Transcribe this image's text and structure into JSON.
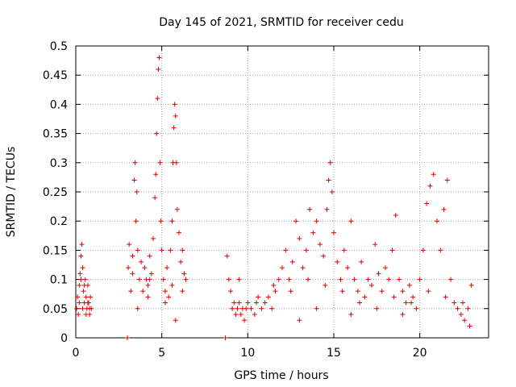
{
  "chart_data": {
    "type": "scatter",
    "title": "Day 145 of 2021, SRMTID for receiver cedu",
    "xlabel": "GPS time / hours",
    "ylabel": "SRMTID / TECUs",
    "xlim": [
      0,
      24
    ],
    "ylim": [
      0,
      0.5
    ],
    "xticks": [
      0,
      5,
      10,
      15,
      20
    ],
    "xtick_labels": [
      "0",
      "5",
      "10",
      "15",
      "20"
    ],
    "yticks": [
      0,
      0.05,
      0.1,
      0.15,
      0.2,
      0.25,
      0.3,
      0.35,
      0.4,
      0.45,
      0.5
    ],
    "ytick_labels": [
      "0",
      "0.05",
      "0.1",
      "0.15",
      "0.2",
      "0.25",
      "0.3",
      "0.35",
      "0.4",
      "0.45",
      "0.5"
    ],
    "grid": true,
    "marker": "+",
    "color": "#e00000",
    "series": [
      {
        "name": "SRMTID",
        "points": [
          [
            0.05,
            0.05
          ],
          [
            0.1,
            0.07
          ],
          [
            0.15,
            0.04
          ],
          [
            0.2,
            0.09
          ],
          [
            0.25,
            0.11
          ],
          [
            0.3,
            0.14
          ],
          [
            0.35,
            0.16
          ],
          [
            0.4,
            0.12
          ],
          [
            0.45,
            0.08
          ],
          [
            0.5,
            0.06
          ],
          [
            0.55,
            0.1
          ],
          [
            0.6,
            0.07
          ],
          [
            0.65,
            0.05
          ],
          [
            0.7,
            0.09
          ],
          [
            0.75,
            0.06
          ],
          [
            0.8,
            0.04
          ],
          [
            0.85,
            0.07
          ],
          [
            0.9,
            0.05
          ],
          [
            0.3,
            0.1
          ],
          [
            0.5,
            0.09
          ],
          [
            0.7,
            0.06
          ],
          [
            0.2,
            0.06
          ],
          [
            0.4,
            0.05
          ],
          [
            0.6,
            0.04
          ],
          [
            0.8,
            0.05
          ],
          [
            3.0,
            0.0
          ],
          [
            8.7,
            0.0
          ],
          [
            3.05,
            0.12
          ],
          [
            3.1,
            0.16
          ],
          [
            3.2,
            0.08
          ],
          [
            3.3,
            0.11
          ],
          [
            3.4,
            0.27
          ],
          [
            3.45,
            0.3
          ],
          [
            3.5,
            0.2
          ],
          [
            3.55,
            0.25
          ],
          [
            3.6,
            0.15
          ],
          [
            3.7,
            0.1
          ],
          [
            3.8,
            0.13
          ],
          [
            3.9,
            0.08
          ],
          [
            4.0,
            0.12
          ],
          [
            4.1,
            0.1
          ],
          [
            4.2,
            0.09
          ],
          [
            4.3,
            0.14
          ],
          [
            4.4,
            0.11
          ],
          [
            4.5,
            0.17
          ],
          [
            4.6,
            0.24
          ],
          [
            4.65,
            0.28
          ],
          [
            4.7,
            0.35
          ],
          [
            4.75,
            0.41
          ],
          [
            4.8,
            0.46
          ],
          [
            4.85,
            0.48
          ],
          [
            4.9,
            0.3
          ],
          [
            4.95,
            0.2
          ],
          [
            5.0,
            0.15
          ],
          [
            5.1,
            0.1
          ],
          [
            5.2,
            0.08
          ],
          [
            5.3,
            0.12
          ],
          [
            5.4,
            0.07
          ],
          [
            5.5,
            0.15
          ],
          [
            5.6,
            0.2
          ],
          [
            5.65,
            0.3
          ],
          [
            5.7,
            0.36
          ],
          [
            5.75,
            0.4
          ],
          [
            5.8,
            0.38
          ],
          [
            5.85,
            0.3
          ],
          [
            5.9,
            0.22
          ],
          [
            6.0,
            0.18
          ],
          [
            6.1,
            0.13
          ],
          [
            6.2,
            0.15
          ],
          [
            6.3,
            0.11
          ],
          [
            6.4,
            0.1
          ],
          [
            3.6,
            0.05
          ],
          [
            4.2,
            0.07
          ],
          [
            5.2,
            0.06
          ],
          [
            5.8,
            0.03
          ],
          [
            6.2,
            0.08
          ],
          [
            3.3,
            0.14
          ],
          [
            4.3,
            0.1
          ],
          [
            5.6,
            0.09
          ],
          [
            8.8,
            0.14
          ],
          [
            8.9,
            0.1
          ],
          [
            9.0,
            0.08
          ],
          [
            9.1,
            0.05
          ],
          [
            9.2,
            0.06
          ],
          [
            9.3,
            0.04
          ],
          [
            9.4,
            0.05
          ],
          [
            9.5,
            0.06
          ],
          [
            9.6,
            0.04
          ],
          [
            9.7,
            0.05
          ],
          [
            9.8,
            0.03
          ],
          [
            9.9,
            0.05
          ],
          [
            10.0,
            0.06
          ],
          [
            10.2,
            0.05
          ],
          [
            10.4,
            0.04
          ],
          [
            10.6,
            0.07
          ],
          [
            10.8,
            0.05
          ],
          [
            11.0,
            0.06
          ],
          [
            11.2,
            0.07
          ],
          [
            11.4,
            0.05
          ],
          [
            11.6,
            0.08
          ],
          [
            11.8,
            0.1
          ],
          [
            12.0,
            0.12
          ],
          [
            12.2,
            0.15
          ],
          [
            12.4,
            0.1
          ],
          [
            12.6,
            0.13
          ],
          [
            12.8,
            0.2
          ],
          [
            13.0,
            0.17
          ],
          [
            13.2,
            0.12
          ],
          [
            13.4,
            0.15
          ],
          [
            13.6,
            0.22
          ],
          [
            13.8,
            0.18
          ],
          [
            14.0,
            0.2
          ],
          [
            14.2,
            0.16
          ],
          [
            14.4,
            0.14
          ],
          [
            14.6,
            0.22
          ],
          [
            14.7,
            0.27
          ],
          [
            14.8,
            0.3
          ],
          [
            14.9,
            0.25
          ],
          [
            15.0,
            0.18
          ],
          [
            15.2,
            0.13
          ],
          [
            15.4,
            0.1
          ],
          [
            15.6,
            0.15
          ],
          [
            15.8,
            0.12
          ],
          [
            16.0,
            0.2
          ],
          [
            16.2,
            0.1
          ],
          [
            16.4,
            0.08
          ],
          [
            16.6,
            0.13
          ],
          [
            16.8,
            0.07
          ],
          [
            17.0,
            0.1
          ],
          [
            17.2,
            0.09
          ],
          [
            17.4,
            0.16
          ],
          [
            17.6,
            0.11
          ],
          [
            17.8,
            0.08
          ],
          [
            18.0,
            0.12
          ],
          [
            18.2,
            0.1
          ],
          [
            18.4,
            0.15
          ],
          [
            18.6,
            0.21
          ],
          [
            18.8,
            0.1
          ],
          [
            19.0,
            0.08
          ],
          [
            19.2,
            0.06
          ],
          [
            19.4,
            0.09
          ],
          [
            19.6,
            0.07
          ],
          [
            19.8,
            0.05
          ],
          [
            20.0,
            0.1
          ],
          [
            20.2,
            0.15
          ],
          [
            20.4,
            0.23
          ],
          [
            20.6,
            0.26
          ],
          [
            20.8,
            0.28
          ],
          [
            21.0,
            0.2
          ],
          [
            21.2,
            0.15
          ],
          [
            21.4,
            0.22
          ],
          [
            21.6,
            0.27
          ],
          [
            21.8,
            0.1
          ],
          [
            22.0,
            0.06
          ],
          [
            22.2,
            0.05
          ],
          [
            22.4,
            0.04
          ],
          [
            22.6,
            0.03
          ],
          [
            22.8,
            0.05
          ],
          [
            23.0,
            0.09
          ],
          [
            9.5,
            0.1
          ],
          [
            10.5,
            0.06
          ],
          [
            11.5,
            0.09
          ],
          [
            12.5,
            0.08
          ],
          [
            13.5,
            0.1
          ],
          [
            14.5,
            0.09
          ],
          [
            15.5,
            0.08
          ],
          [
            16.5,
            0.06
          ],
          [
            17.5,
            0.05
          ],
          [
            18.5,
            0.07
          ],
          [
            19.5,
            0.06
          ],
          [
            20.5,
            0.08
          ],
          [
            21.5,
            0.07
          ],
          [
            22.5,
            0.06
          ],
          [
            22.9,
            0.02
          ],
          [
            13.0,
            0.03
          ],
          [
            14.0,
            0.05
          ],
          [
            16.0,
            0.04
          ],
          [
            19.0,
            0.04
          ]
        ]
      }
    ]
  }
}
